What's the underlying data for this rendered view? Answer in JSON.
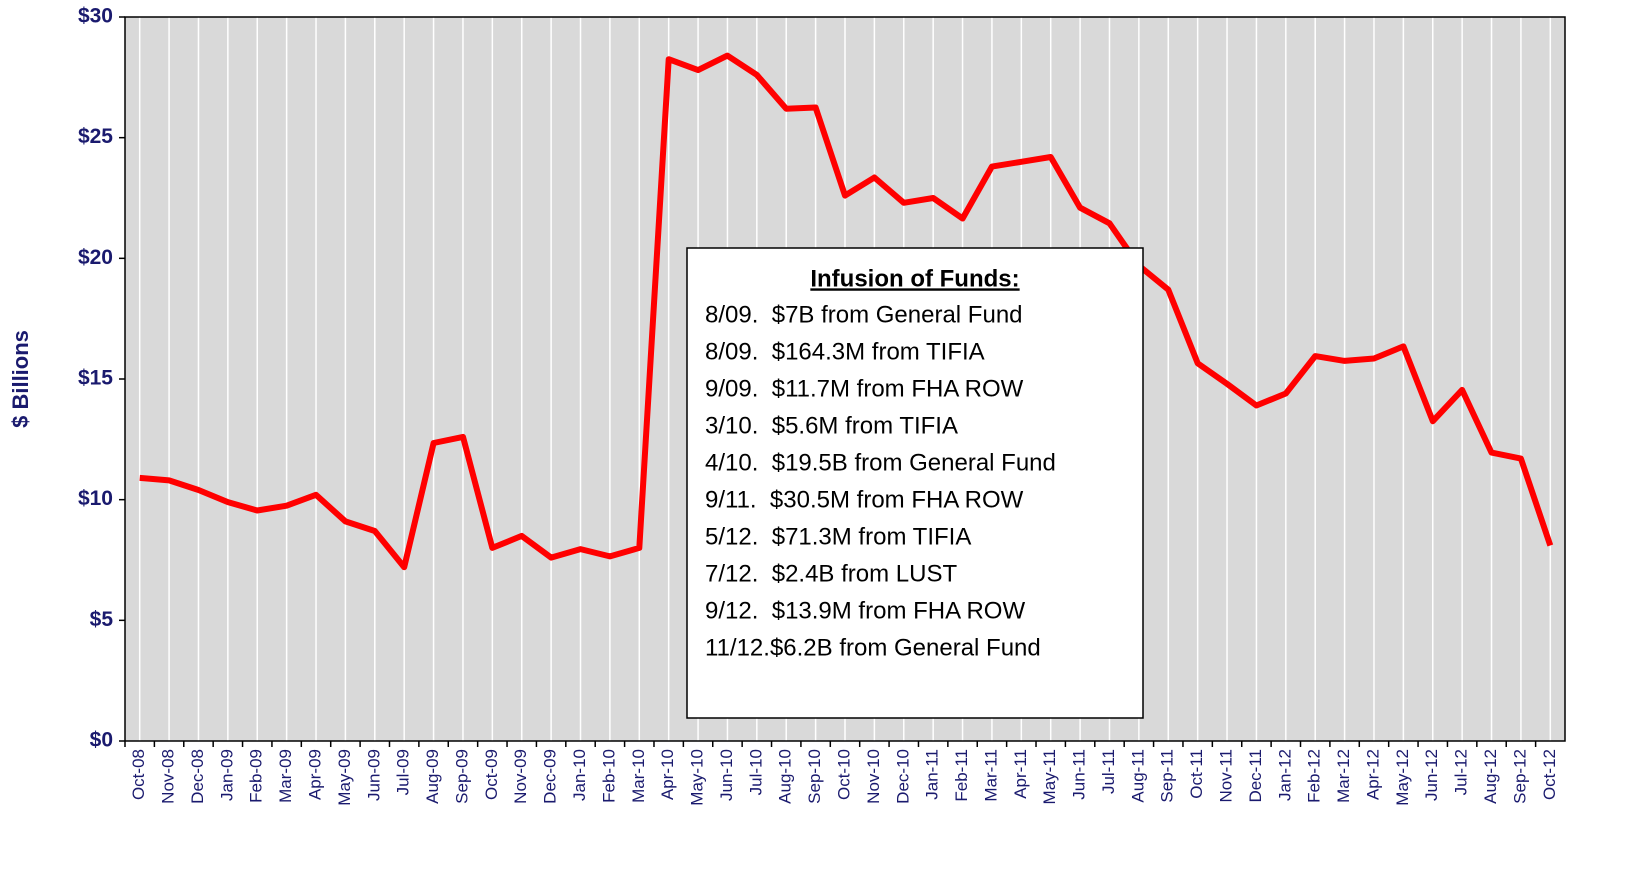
{
  "chart_data": {
    "type": "line",
    "y_label": "$ Billions",
    "categories": [
      "Oct-08",
      "Nov-08",
      "Dec-08",
      "Jan-09",
      "Feb-09",
      "Mar-09",
      "Apr-09",
      "May-09",
      "Jun-09",
      "Jul-09",
      "Aug-09",
      "Sep-09",
      "Oct-09",
      "Nov-09",
      "Dec-09",
      "Jan-10",
      "Feb-10",
      "Mar-10",
      "Apr-10",
      "May-10",
      "Jun-10",
      "Jul-10",
      "Aug-10",
      "Sep-10",
      "Oct-10",
      "Nov-10",
      "Dec-10",
      "Jan-11",
      "Feb-11",
      "Mar-11",
      "Apr-11",
      "May-11",
      "Jun-11",
      "Jul-11",
      "Aug-11",
      "Sep-11",
      "Oct-11",
      "Nov-11",
      "Dec-11",
      "Jan-12",
      "Feb-12",
      "Mar-12",
      "Apr-12",
      "May-12",
      "Jun-12",
      "Jul-12",
      "Aug-12",
      "Sep-12",
      "Oct-12"
    ],
    "values": [
      10.9,
      10.8,
      10.4,
      9.9,
      9.55,
      9.75,
      10.2,
      9.1,
      8.7,
      7.2,
      12.35,
      12.6,
      8.0,
      8.5,
      7.6,
      7.95,
      7.65,
      8.0,
      28.25,
      27.8,
      28.4,
      27.6,
      26.2,
      26.25,
      22.6,
      23.35,
      22.3,
      22.5,
      21.65,
      23.8,
      24.0,
      24.2,
      22.1,
      21.45,
      19.7,
      18.7,
      15.65,
      14.8,
      13.9,
      14.4,
      15.95,
      15.75,
      15.85,
      16.35,
      13.25,
      14.55,
      11.95,
      11.7,
      8.1
    ],
    "color": "#ff0000",
    "ylim": [
      0,
      30
    ],
    "yticks": [
      {
        "value": 0,
        "label": "$0"
      },
      {
        "value": 5,
        "label": "$5"
      },
      {
        "value": 10,
        "label": "$10"
      },
      {
        "value": 15,
        "label": "$15"
      },
      {
        "value": 20,
        "label": "$20"
      },
      {
        "value": 25,
        "label": "$25"
      },
      {
        "value": 30,
        "label": "$30"
      }
    ],
    "x_grid": true,
    "background": "#d9d9d9",
    "annotation": {
      "title": "Infusion of Funds:",
      "lines": [
        "8/09.  $7B from General Fund",
        "8/09.  $164.3M from TIFIA",
        "9/09.  $11.7M from FHA ROW",
        "3/10.  $5.6M from TIFIA",
        "4/10.  $19.5B from General Fund",
        "9/11.  $30.5M from FHA ROW",
        "5/12.  $71.3M from TIFIA",
        "7/12.  $2.4B from LUST",
        "9/12.  $13.9M from FHA ROW",
        "11/12.$6.2B from General Fund"
      ]
    }
  }
}
